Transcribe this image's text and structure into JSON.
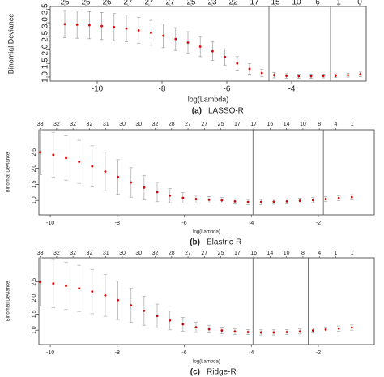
{
  "chart_data": [
    {
      "type": "errorbar",
      "caption_label": "(a)",
      "caption_name": "LASSO-R",
      "xlabel": "log(Lambda)",
      "ylabel": "Binomial Deviance",
      "color": "#e00000",
      "error_color": "#9a9a9a",
      "vline_color": "#555555",
      "x": [
        -11,
        -10.62,
        -10.24,
        -9.86,
        -9.48,
        -9.1,
        -8.72,
        -8.34,
        -7.96,
        -7.58,
        -7.2,
        -6.82,
        -6.44,
        -6.06,
        -5.68,
        -5.3,
        -4.92,
        -4.54,
        -4.16,
        -3.78,
        -3.4,
        -3.02,
        -2.64,
        -2.26,
        -1.88
      ],
      "values": [
        2.95,
        2.93,
        2.91,
        2.88,
        2.84,
        2.79,
        2.72,
        2.63,
        2.52,
        2.4,
        2.27,
        2.12,
        1.95,
        1.74,
        1.5,
        1.3,
        1.15,
        1.07,
        1.04,
        1.03,
        1.03,
        1.04,
        1.05,
        1.07,
        1.1
      ],
      "errors": [
        0.5,
        0.5,
        0.5,
        0.5,
        0.5,
        0.49,
        0.48,
        0.46,
        0.44,
        0.42,
        0.4,
        0.37,
        0.34,
        0.3,
        0.25,
        0.2,
        0.14,
        0.1,
        0.08,
        0.07,
        0.07,
        0.07,
        0.07,
        0.07,
        0.08
      ],
      "vlines": [
        -4.7,
        -2.8
      ],
      "xlim": [
        -11.45,
        -1.7
      ],
      "ylim": [
        0.85,
        3.6
      ],
      "xticks": [
        -10,
        -8,
        -6,
        -4
      ],
      "yticks": [
        {
          "value": 1,
          "label": "1.0"
        },
        1.5,
        {
          "value": 2,
          "label": "2.0"
        },
        2.5,
        {
          "value": 3,
          "label": "3.0"
        },
        3.5
      ],
      "x2ticks": [
        {
          "value": -11,
          "label": "26"
        },
        {
          "value": -10.35,
          "label": "26"
        },
        {
          "value": -9.7,
          "label": "26"
        },
        {
          "value": -9.05,
          "label": "27"
        },
        {
          "value": -8.4,
          "label": "27"
        },
        {
          "value": -7.75,
          "label": "27"
        },
        {
          "value": -7.1,
          "label": "25"
        },
        {
          "value": -6.45,
          "label": "23"
        },
        {
          "value": -5.8,
          "label": "22"
        },
        {
          "value": -5.15,
          "label": "17"
        },
        {
          "value": -4.5,
          "label": "15"
        },
        {
          "value": -3.85,
          "label": "10"
        },
        {
          "value": -3.2,
          "label": "6"
        },
        {
          "value": -2.55,
          "label": "1"
        },
        {
          "value": -1.9,
          "label": "0"
        }
      ]
    },
    {
      "type": "errorbar",
      "caption_label": "(b)",
      "caption_name": "Elastric-R",
      "xlabel": "log(Lambda)",
      "ylabel": "Binomial Deviance",
      "color": "#e00000",
      "error_color": "#a8a8a8",
      "vline_color": "#555555",
      "x": [
        -10.3,
        -9.91,
        -9.53,
        -9.14,
        -8.75,
        -8.36,
        -7.98,
        -7.59,
        -7.2,
        -6.81,
        -6.43,
        -6.04,
        -5.65,
        -5.26,
        -4.88,
        -4.49,
        -4.1,
        -3.71,
        -3.33,
        -2.94,
        -2.55,
        -2.16,
        -1.78,
        -1.39,
        -1.0
      ],
      "values": [
        2.5,
        2.42,
        2.32,
        2.2,
        2.06,
        1.9,
        1.73,
        1.56,
        1.4,
        1.26,
        1.15,
        1.08,
        1.04,
        1.02,
        1.0,
        0.97,
        0.95,
        0.95,
        0.96,
        0.97,
        0.99,
        1.01,
        1.04,
        1.07,
        1.1
      ],
      "errors": [
        0.7,
        0.7,
        0.69,
        0.67,
        0.64,
        0.6,
        0.54,
        0.46,
        0.38,
        0.3,
        0.22,
        0.16,
        0.12,
        0.1,
        0.09,
        0.08,
        0.08,
        0.08,
        0.08,
        0.08,
        0.08,
        0.08,
        0.08,
        0.08,
        0.08
      ],
      "vlines": [
        -3.95,
        -1.85
      ],
      "xlim": [
        -10.34,
        -0.33
      ],
      "ylim": [
        0.55,
        3.2
      ],
      "xticks": [
        -10,
        -8,
        -6,
        -4,
        -2
      ],
      "yticks": [
        {
          "value": 1,
          "label": "1.0"
        },
        1.5,
        {
          "value": 2,
          "label": "2.0"
        },
        2.5
      ],
      "x2ticks": [
        {
          "value": -10.3,
          "label": "33"
        },
        {
          "value": -9.81,
          "label": "32"
        },
        {
          "value": -9.32,
          "label": "32"
        },
        {
          "value": -8.83,
          "label": "32"
        },
        {
          "value": -8.34,
          "label": "31"
        },
        {
          "value": -7.85,
          "label": "30"
        },
        {
          "value": -7.36,
          "label": "30"
        },
        {
          "value": -6.87,
          "label": "32"
        },
        {
          "value": -6.38,
          "label": "28"
        },
        {
          "value": -5.89,
          "label": "27"
        },
        {
          "value": -5.4,
          "label": "27"
        },
        {
          "value": -4.91,
          "label": "25"
        },
        {
          "value": -4.42,
          "label": "17"
        },
        {
          "value": -3.93,
          "label": "17"
        },
        {
          "value": -3.44,
          "label": "16"
        },
        {
          "value": -2.95,
          "label": "14"
        },
        {
          "value": -2.46,
          "label": "10"
        },
        {
          "value": -1.97,
          "label": "8"
        },
        {
          "value": -1.48,
          "label": "4"
        },
        {
          "value": -0.99,
          "label": "1"
        }
      ]
    },
    {
      "type": "errorbar",
      "caption_label": "(c)",
      "caption_name": "Ridge-R",
      "xlabel": "log(Lambda)",
      "ylabel": "Binomial Deviance",
      "color": "#e00000",
      "error_color": "#a8a8a8",
      "vline_color": "#555555",
      "x": [
        -10.3,
        -9.91,
        -9.53,
        -9.14,
        -8.75,
        -8.36,
        -7.98,
        -7.59,
        -7.2,
        -6.81,
        -6.43,
        -6.04,
        -5.65,
        -5.26,
        -4.88,
        -4.49,
        -4.1,
        -3.71,
        -3.33,
        -2.94,
        -2.55,
        -2.16,
        -1.78,
        -1.39,
        -1.0
      ],
      "values": [
        2.5,
        2.45,
        2.38,
        2.3,
        2.2,
        2.08,
        1.93,
        1.77,
        1.6,
        1.44,
        1.3,
        1.18,
        1.09,
        1.03,
        0.99,
        0.96,
        0.94,
        0.93,
        0.93,
        0.94,
        0.96,
        0.99,
        1.02,
        1.05,
        1.08
      ],
      "errors": [
        0.75,
        0.75,
        0.74,
        0.72,
        0.69,
        0.65,
        0.6,
        0.53,
        0.45,
        0.37,
        0.29,
        0.22,
        0.16,
        0.12,
        0.1,
        0.09,
        0.08,
        0.08,
        0.08,
        0.08,
        0.08,
        0.08,
        0.08,
        0.08,
        0.08
      ],
      "vlines": [
        -3.95,
        -2.3
      ],
      "xlim": [
        -10.34,
        -0.33
      ],
      "ylim": [
        0.55,
        3.25
      ],
      "xticks": [
        -10,
        -8,
        -6,
        -4,
        -2
      ],
      "yticks": [
        {
          "value": 1,
          "label": "1.0"
        },
        1.5,
        {
          "value": 2,
          "label": "2.0"
        },
        2.5
      ],
      "x2ticks": [
        {
          "value": -10.3,
          "label": "33"
        },
        {
          "value": -9.81,
          "label": "32"
        },
        {
          "value": -9.32,
          "label": "32"
        },
        {
          "value": -8.83,
          "label": "32"
        },
        {
          "value": -8.34,
          "label": "31"
        },
        {
          "value": -7.85,
          "label": "30"
        },
        {
          "value": -7.36,
          "label": "30"
        },
        {
          "value": -6.87,
          "label": "32"
        },
        {
          "value": -6.38,
          "label": "28"
        },
        {
          "value": -5.89,
          "label": "27"
        },
        {
          "value": -5.4,
          "label": "27"
        },
        {
          "value": -4.91,
          "label": "25"
        },
        {
          "value": -4.42,
          "label": "17"
        },
        {
          "value": -3.93,
          "label": "16"
        },
        {
          "value": -3.44,
          "label": "14"
        },
        {
          "value": -2.95,
          "label": "10"
        },
        {
          "value": -2.46,
          "label": "8"
        },
        {
          "value": -1.97,
          "label": "4"
        },
        {
          "value": -1.48,
          "label": "1"
        },
        {
          "value": -0.99,
          "label": "1"
        }
      ]
    }
  ]
}
